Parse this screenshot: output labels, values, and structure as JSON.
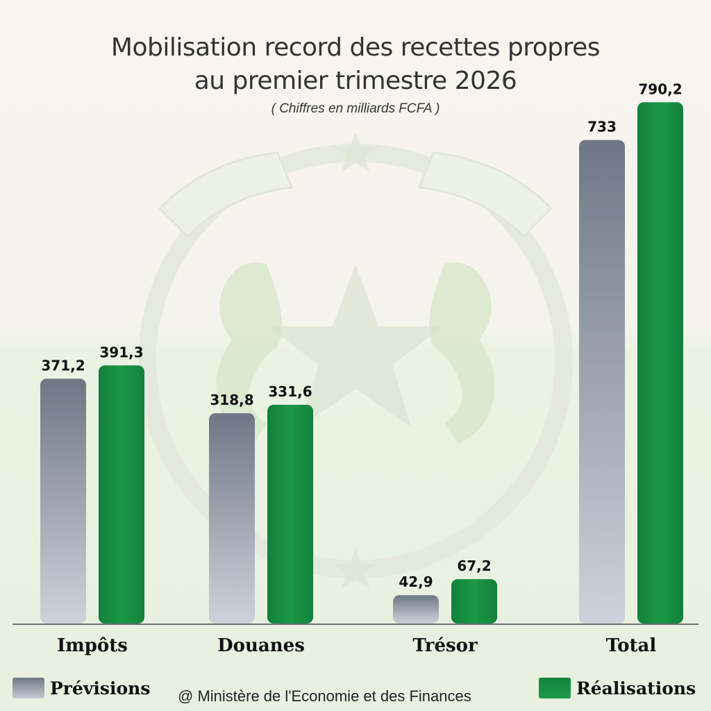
{
  "header": {
    "title_line1": "Mobilisation record des recettes propres",
    "title_line2": "au premier trimestre 2026",
    "subtitle": "( Chiffres en milliards FCFA )"
  },
  "legend": {
    "previsions_label": "Prévisions",
    "realisations_label": "Réalisations"
  },
  "footer": {
    "credit": "@ Ministère de l'Economie et des Finances"
  },
  "colors": {
    "previsions_top": "#6f7787",
    "previsions_bottom": "#cfd2da",
    "realisations": "#18903f",
    "emblem_faint": "#dfe8d0"
  },
  "chart_data": {
    "type": "bar",
    "title": "Mobilisation record des recettes propres au premier trimestre 2026",
    "subtitle": "( Chiffres en milliards FCFA )",
    "categories": [
      "Impôts",
      "Douanes",
      "Trésor",
      "Total"
    ],
    "series": [
      {
        "name": "Prévisions",
        "values": [
          371.2,
          318.8,
          42.9,
          733
        ],
        "labels": [
          "371,2",
          "318,8",
          "42,9",
          "733"
        ]
      },
      {
        "name": "Réalisations",
        "values": [
          391.3,
          331.6,
          67.2,
          790.2
        ],
        "labels": [
          "391,3",
          "331,6",
          "67,2",
          "790,2"
        ]
      }
    ],
    "grid": false,
    "legend_position": "bottom"
  }
}
